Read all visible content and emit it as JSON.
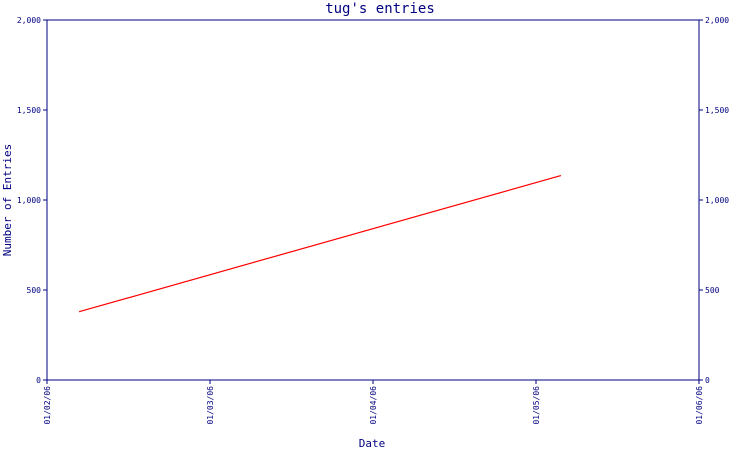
{
  "chart_data": {
    "type": "line",
    "title": "tug's entries",
    "xlabel": "Date",
    "ylabel": "Number of Entries",
    "x_ticks": [
      "01/02/06",
      "01/03/06",
      "01/04/06",
      "01/05/06",
      "01/06/06"
    ],
    "y_ticks": [
      "0",
      "500",
      "1,000",
      "1,500",
      "2,000"
    ],
    "y_tick_values": [
      0,
      500,
      1000,
      1500,
      2000
    ],
    "ylim": [
      0,
      2000
    ],
    "xlim": [
      "2006-01-02",
      "2006-01-06"
    ],
    "grid": false,
    "series": [
      {
        "color": "#ff0000",
        "points": [
          {
            "x": "2006-01-02.2",
            "y": 380
          },
          {
            "x": "2006-01-05.15",
            "y": 1135
          }
        ]
      }
    ]
  },
  "colors": {
    "axis": "#000080",
    "line": "#ff0000",
    "background": "#ffffff"
  }
}
